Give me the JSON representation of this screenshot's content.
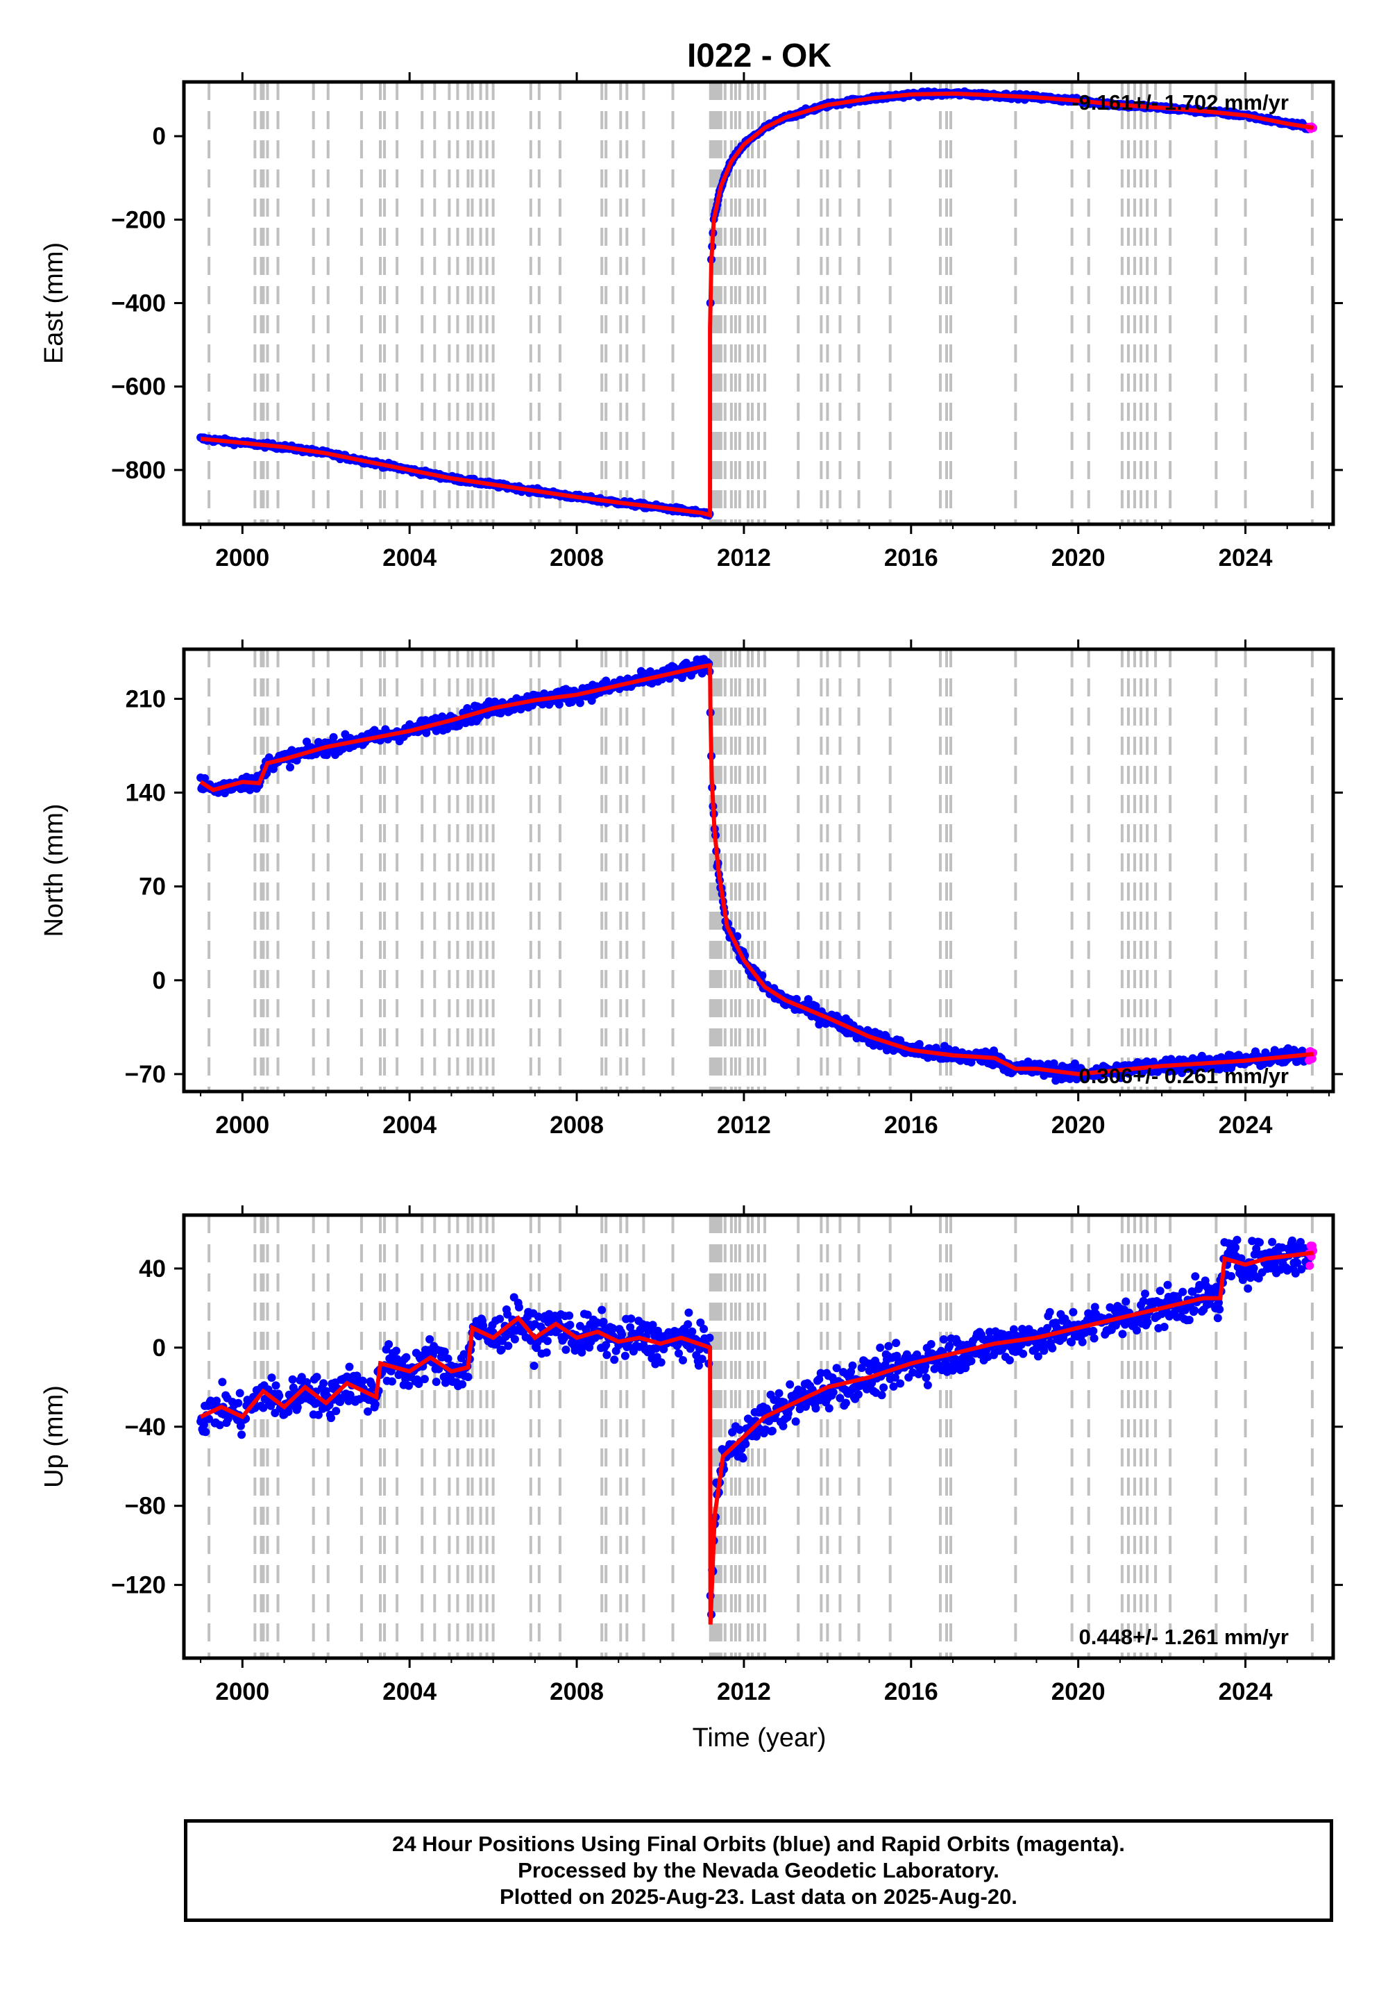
{
  "title": "I022 - OK",
  "xlabel": "Time (year)",
  "footer": {
    "line1": "24 Hour Positions Using Final Orbits (blue) and Rapid Orbits (magenta).",
    "line2": "Processed by the Nevada Geodetic Laboratory.",
    "line3": "Plotted on 2025-Aug-23. Last data on 2025-Aug-20."
  },
  "colors": {
    "final": "#0000ff",
    "rapid": "#ff00ff",
    "model": "#ff0000",
    "events": "#c0c0c0"
  },
  "chart_data": [
    {
      "type": "scatter",
      "ylabel": "East (mm)",
      "rate_text": "-9.161+/- 1.702 mm/yr",
      "xlim": [
        1998.6,
        2026.1
      ],
      "ylim": [
        -930,
        130
      ],
      "xticks": [
        2000,
        2004,
        2008,
        2012,
        2016,
        2020,
        2024
      ],
      "yticks": [
        0,
        -200,
        -400,
        -600,
        -800
      ],
      "ytick_labels": [
        "0",
        "−200",
        "−400",
        "−600",
        "−800"
      ],
      "data_range": [
        1999.0,
        2025.63
      ],
      "rapid_range": [
        2025.5,
        2025.63
      ],
      "noise": 4,
      "model": [
        [
          1999.0,
          -725
        ],
        [
          2000.0,
          -735
        ],
        [
          2001.0,
          -745
        ],
        [
          2002.0,
          -760
        ],
        [
          2003.0,
          -780
        ],
        [
          2004.0,
          -800
        ],
        [
          2005.0,
          -820
        ],
        [
          2006.0,
          -835
        ],
        [
          2007.0,
          -850
        ],
        [
          2008.0,
          -865
        ],
        [
          2009.0,
          -878
        ],
        [
          2010.0,
          -890
        ],
        [
          2011.0,
          -903
        ],
        [
          2011.19,
          -908
        ],
        [
          2011.19,
          -460
        ],
        [
          2011.22,
          -300
        ],
        [
          2011.28,
          -200
        ],
        [
          2011.45,
          -120
        ],
        [
          2011.7,
          -60
        ],
        [
          2012.0,
          -20
        ],
        [
          2012.5,
          20
        ],
        [
          2013.0,
          45
        ],
        [
          2014.0,
          75
        ],
        [
          2015.0,
          90
        ],
        [
          2016.0,
          100
        ],
        [
          2017.0,
          102
        ],
        [
          2018.0,
          98
        ],
        [
          2019.0,
          93
        ],
        [
          2020.0,
          85
        ],
        [
          2021.0,
          75
        ],
        [
          2022.0,
          68
        ],
        [
          2023.0,
          60
        ],
        [
          2024.0,
          50
        ],
        [
          2025.0,
          30
        ],
        [
          2025.63,
          20
        ]
      ]
    },
    {
      "type": "scatter",
      "ylabel": "North (mm)",
      "rate_text": "0.306+/- 0.261 mm/yr",
      "xlim": [
        1998.6,
        2026.1
      ],
      "ylim": [
        -83,
        247
      ],
      "xticks": [
        2000,
        2004,
        2008,
        2012,
        2016,
        2020,
        2024
      ],
      "yticks": [
        210,
        140,
        70,
        0,
        -70
      ],
      "ytick_labels": [
        "210",
        "140",
        "70",
        "0",
        "−70"
      ],
      "data_range": [
        1999.0,
        2025.63
      ],
      "rapid_range": [
        2025.5,
        2025.63
      ],
      "noise": 4,
      "model": [
        [
          1999.0,
          148
        ],
        [
          1999.3,
          142
        ],
        [
          2000.0,
          148
        ],
        [
          2000.4,
          147
        ],
        [
          2000.6,
          162
        ],
        [
          2001.0,
          165
        ],
        [
          2002.0,
          174
        ],
        [
          2003.0,
          180
        ],
        [
          2004.0,
          186
        ],
        [
          2005.0,
          194
        ],
        [
          2006.0,
          203
        ],
        [
          2007.0,
          209
        ],
        [
          2008.0,
          213
        ],
        [
          2009.0,
          220
        ],
        [
          2010.0,
          227
        ],
        [
          2011.0,
          234
        ],
        [
          2011.19,
          235
        ],
        [
          2011.2,
          200
        ],
        [
          2011.23,
          150
        ],
        [
          2011.3,
          110
        ],
        [
          2011.4,
          80
        ],
        [
          2011.6,
          40
        ],
        [
          2012.0,
          15
        ],
        [
          2012.5,
          -5
        ],
        [
          2013.0,
          -15
        ],
        [
          2014.0,
          -28
        ],
        [
          2015.0,
          -42
        ],
        [
          2016.0,
          -52
        ],
        [
          2017.0,
          -56
        ],
        [
          2018.0,
          -58
        ],
        [
          2018.5,
          -66
        ],
        [
          2019.0,
          -66
        ],
        [
          2020.0,
          -70
        ],
        [
          2021.0,
          -67
        ],
        [
          2022.0,
          -64
        ],
        [
          2023.0,
          -62
        ],
        [
          2024.0,
          -60
        ],
        [
          2025.63,
          -55
        ]
      ]
    },
    {
      "type": "scatter",
      "ylabel": "Up (mm)",
      "rate_text": "0.448+/- 1.261 mm/yr",
      "xlim": [
        1998.6,
        2026.1
      ],
      "ylim": [
        -157,
        67
      ],
      "xticks": [
        2000,
        2004,
        2008,
        2012,
        2016,
        2020,
        2024
      ],
      "yticks": [
        40,
        0,
        -40,
        -80,
        -120
      ],
      "ytick_labels": [
        "40",
        "0",
        "−40",
        "−80",
        "−120"
      ],
      "data_range": [
        1999.0,
        2025.63
      ],
      "rapid_range": [
        2025.5,
        2025.63
      ],
      "noise": 7,
      "model": [
        [
          1999.0,
          -35
        ],
        [
          1999.5,
          -30
        ],
        [
          2000.0,
          -35
        ],
        [
          2000.5,
          -22
        ],
        [
          2001.0,
          -30
        ],
        [
          2001.5,
          -20
        ],
        [
          2002.0,
          -28
        ],
        [
          2002.5,
          -18
        ],
        [
          2003.2,
          -25
        ],
        [
          2003.3,
          -8
        ],
        [
          2004.0,
          -12
        ],
        [
          2004.5,
          -5
        ],
        [
          2005.0,
          -12
        ],
        [
          2005.4,
          -10
        ],
        [
          2005.5,
          10
        ],
        [
          2006.0,
          5
        ],
        [
          2006.6,
          15
        ],
        [
          2007.0,
          5
        ],
        [
          2007.5,
          12
        ],
        [
          2008.0,
          5
        ],
        [
          2008.5,
          8
        ],
        [
          2009.0,
          3
        ],
        [
          2009.5,
          5
        ],
        [
          2010.0,
          2
        ],
        [
          2010.5,
          5
        ],
        [
          2011.19,
          0
        ],
        [
          2011.2,
          -140
        ],
        [
          2011.3,
          -85
        ],
        [
          2011.5,
          -55
        ],
        [
          2012.0,
          -45
        ],
        [
          2012.5,
          -35
        ],
        [
          2013.0,
          -30
        ],
        [
          2014.0,
          -20
        ],
        [
          2015.0,
          -15
        ],
        [
          2016.0,
          -8
        ],
        [
          2017.0,
          -3
        ],
        [
          2018.0,
          2
        ],
        [
          2019.0,
          5
        ],
        [
          2020.0,
          10
        ],
        [
          2021.0,
          15
        ],
        [
          2022.0,
          20
        ],
        [
          2023.0,
          25
        ],
        [
          2023.4,
          25
        ],
        [
          2023.5,
          45
        ],
        [
          2024.0,
          42
        ],
        [
          2024.5,
          45
        ],
        [
          2025.63,
          48
        ]
      ]
    }
  ],
  "event_years": [
    1999.2,
    2000.3,
    2000.45,
    2000.5,
    2000.6,
    2000.85,
    2001.7,
    2002.05,
    2002.85,
    2003.3,
    2003.4,
    2003.7,
    2004.3,
    2004.6,
    2004.95,
    2005.15,
    2005.4,
    2005.5,
    2005.7,
    2005.85,
    2006.0,
    2006.9,
    2007.1,
    2007.6,
    2008.6,
    2008.7,
    2009.05,
    2009.2,
    2009.6,
    2010.3,
    2011.2,
    2011.25,
    2011.3,
    2011.35,
    2011.4,
    2011.45,
    2011.55,
    2011.7,
    2011.8,
    2011.9,
    2012.1,
    2012.2,
    2012.35,
    2012.5,
    2013.3,
    2013.85,
    2014.0,
    2014.3,
    2014.75,
    2015.5,
    2016.7,
    2016.85,
    2016.95,
    2018.5,
    2019.85,
    2020.25,
    2021.05,
    2021.2,
    2021.35,
    2021.5,
    2021.65,
    2021.85,
    2022.2,
    2023.3,
    2024.0,
    2025.6
  ]
}
